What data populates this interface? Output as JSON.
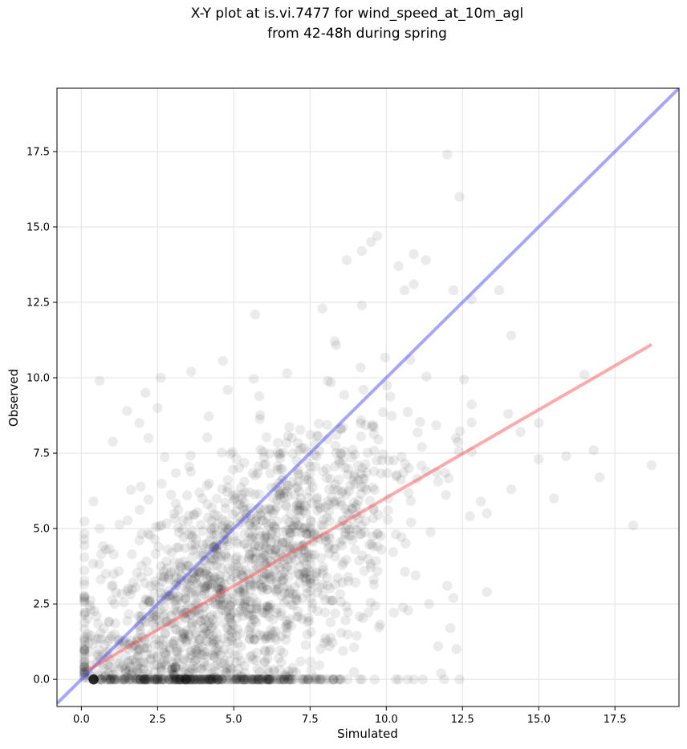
{
  "title": {
    "line1": "X-Y plot at is.vi.7477 for wind_speed_at_10m_agl",
    "line2": "from 42-48h during spring"
  },
  "chart_data": {
    "type": "scatter",
    "title": "X-Y plot at is.vi.7477 for wind_speed_at_10m_agl from 42-48h during spring",
    "xlabel": "Simulated",
    "ylabel": "Observed",
    "xlim": [
      -0.8,
      19.6
    ],
    "ylim": [
      -0.9,
      19.6
    ],
    "xticks": [
      "0.0",
      "2.5",
      "5.0",
      "7.5",
      "10.0",
      "12.5",
      "15.0",
      "17.5"
    ],
    "yticks": [
      "0.0",
      "2.5",
      "5.0",
      "7.5",
      "10.0",
      "12.5",
      "15.0",
      "17.5"
    ],
    "grid": true,
    "marker_color": "#000000",
    "marker_alpha": 0.08,
    "identity_line": {
      "color": "#4d4dff",
      "x": [
        -0.8,
        19.6
      ],
      "y": [
        -0.8,
        19.6
      ]
    },
    "regression_line": {
      "color": "#ff5555",
      "x": [
        0.2,
        18.7
      ],
      "y": [
        0.3,
        11.1
      ]
    },
    "outlier_points": [
      [
        12.0,
        17.4
      ],
      [
        12.4,
        16.0
      ],
      [
        9.7,
        14.7
      ],
      [
        9.5,
        14.5
      ],
      [
        9.2,
        14.2
      ],
      [
        8.7,
        13.9
      ],
      [
        10.9,
        14.1
      ],
      [
        10.4,
        13.7
      ],
      [
        11.3,
        13.9
      ],
      [
        13.7,
        12.9
      ],
      [
        12.8,
        12.6
      ],
      [
        10.9,
        13.1
      ],
      [
        12.2,
        12.9
      ],
      [
        10.6,
        12.9
      ],
      [
        5.7,
        12.1
      ],
      [
        7.9,
        12.3
      ],
      [
        9.2,
        12.4
      ],
      [
        14.1,
        11.4
      ],
      [
        3.6,
        10.2
      ],
      [
        2.6,
        10.0
      ],
      [
        0.6,
        9.9
      ],
      [
        2.1,
        9.5
      ],
      [
        4.8,
        9.6
      ],
      [
        1.5,
        8.9
      ],
      [
        2.5,
        9.0
      ],
      [
        2.2,
        8.0
      ],
      [
        1.9,
        8.5
      ],
      [
        16.5,
        10.1
      ],
      [
        15.0,
        8.5
      ],
      [
        16.8,
        7.6
      ],
      [
        17.0,
        6.7
      ],
      [
        18.7,
        7.1
      ],
      [
        18.1,
        5.1
      ],
      [
        15.5,
        6.0
      ],
      [
        15.9,
        7.4
      ],
      [
        15.0,
        7.3
      ],
      [
        14.1,
        6.3
      ],
      [
        14.4,
        8.2
      ],
      [
        14.0,
        8.8
      ],
      [
        13.3,
        5.5
      ],
      [
        13.1,
        5.9
      ],
      [
        13.3,
        2.9
      ],
      [
        12.2,
        2.7
      ],
      [
        12.3,
        1.0
      ],
      [
        11.7,
        1.1
      ],
      [
        11.8,
        0.2
      ],
      [
        12.0,
        3.1
      ],
      [
        11.4,
        2.5
      ],
      [
        12.1,
        1.7
      ],
      [
        0.4,
        5.9
      ],
      [
        0.6,
        5.0
      ],
      [
        0.8,
        4.3
      ],
      [
        0.2,
        2.0
      ],
      [
        0.5,
        2.1
      ],
      [
        0.2,
        1.4
      ],
      [
        0.8,
        3.5
      ],
      [
        12.4,
        0.0
      ],
      [
        11.9,
        0.0
      ],
      [
        11.2,
        0.0
      ],
      [
        10.9,
        0.0
      ],
      [
        10.7,
        0.0
      ]
    ],
    "cluster_config": {
      "count": 1600,
      "seed": 7477,
      "zero_row_count": 320
    }
  }
}
